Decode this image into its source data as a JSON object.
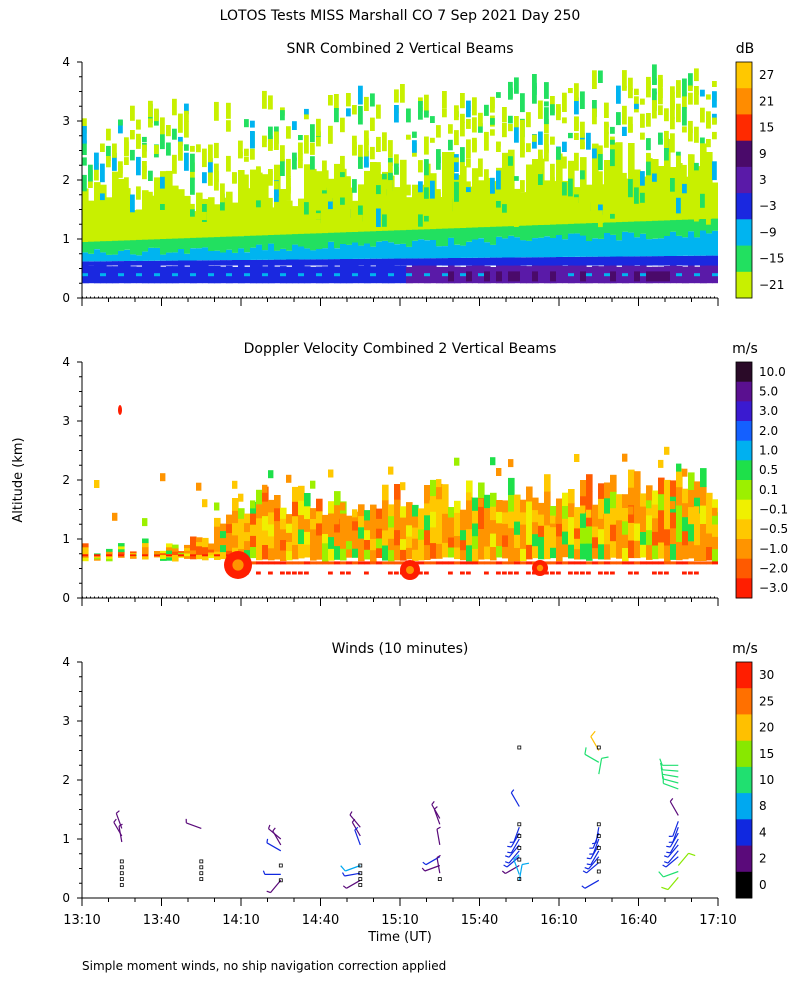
{
  "figure": {
    "title": "LOTOS Tests MISS Marshall CO   7 Sep 2021 Day 250",
    "ylabel": "Altitude (km)",
    "xlabel": "Time (UT)",
    "footnote": "Simple moment winds, no ship navigation correction applied",
    "x_ticks": [
      "13:10",
      "13:40",
      "14:10",
      "14:40",
      "15:10",
      "15:40",
      "16:10",
      "16:40",
      "17:10"
    ],
    "y_ticks": [
      "0",
      "1",
      "2",
      "3",
      "4"
    ]
  },
  "chart_data": [
    {
      "type": "heatmap",
      "title": "SNR Combined 2 Vertical Beams",
      "unit": "dB",
      "x_range_hours": [
        13.1667,
        17.1667
      ],
      "ylim": [
        0,
        4
      ],
      "colorbar": {
        "labels": [
          "27",
          "21",
          "15",
          "9",
          "3",
          "−3",
          "−9",
          "−15",
          "−21"
        ],
        "colors": [
          "#ffc800",
          "#ff8c00",
          "#ff2a00",
          "#4a0a6a",
          "#5a1aa8",
          "#1a28e0",
          "#00b4f0",
          "#22e060",
          "#c8f000"
        ]
      }
    },
    {
      "type": "heatmap",
      "title": "Doppler Velocity Combined 2 Vertical Beams",
      "unit": "m/s",
      "x_range_hours": [
        13.1667,
        17.1667
      ],
      "ylim": [
        0,
        4
      ],
      "colorbar": {
        "labels": [
          "10.0",
          "5.0",
          "3.0",
          "2.0",
          "1.0",
          "0.5",
          "0.1",
          "−0.1",
          "−0.5",
          "−1.0",
          "−2.0",
          "−3.0"
        ],
        "colors": [
          "#2a0a28",
          "#5a1090",
          "#3a1ad0",
          "#1460ff",
          "#00b0f0",
          "#1ee04a",
          "#9cf000",
          "#f0f000",
          "#ffc800",
          "#ff9400",
          "#ff5a00",
          "#ff1e00"
        ]
      }
    },
    {
      "type": "scatter",
      "title": "Winds (10 minutes)",
      "unit": "m/s",
      "x_range_hours": [
        13.1667,
        17.1667
      ],
      "ylim": [
        0,
        4
      ],
      "colorbar": {
        "labels": [
          "30",
          "25",
          "20",
          "15",
          "10",
          "8",
          "4",
          "2",
          "0"
        ],
        "colors": [
          "#ff1e00",
          "#ff7000",
          "#ffc000",
          "#88e800",
          "#20e070",
          "#00a8f0",
          "#1028e0",
          "#5a0a7a",
          "#000000"
        ]
      },
      "profiles": [
        {
          "time": 13.417,
          "barbs": [
            {
              "alt": 1.18,
              "speed": 3,
              "dir": 340
            },
            {
              "alt": 1.05,
              "speed": 3,
              "dir": 330
            },
            {
              "alt": 0.95,
              "speed": 2,
              "dir": 350
            }
          ],
          "calm_alts": [
            0.62,
            0.52,
            0.42,
            0.32,
            0.22
          ]
        },
        {
          "time": 13.917,
          "barbs": [
            {
              "alt": 1.18,
              "speed": 3,
              "dir": 290
            }
          ],
          "calm_alts": [
            0.62,
            0.52,
            0.42,
            0.32
          ]
        },
        {
          "time": 14.417,
          "barbs": [
            {
              "alt": 1.0,
              "speed": 3,
              "dir": 310
            },
            {
              "alt": 0.9,
              "speed": 3,
              "dir": 330
            },
            {
              "alt": 0.8,
              "speed": 4,
              "dir": 300
            },
            {
              "alt": 0.4,
              "speed": 4,
              "dir": 270
            },
            {
              "alt": 0.3,
              "speed": 2,
              "dir": 220
            }
          ],
          "calm_alts": [
            0.55,
            0.3
          ]
        },
        {
          "time": 14.917,
          "barbs": [
            {
              "alt": 1.2,
              "speed": 3,
              "dir": 320
            },
            {
              "alt": 1.05,
              "speed": 3,
              "dir": 330
            },
            {
              "alt": 0.9,
              "speed": 4,
              "dir": 340
            },
            {
              "alt": 0.55,
              "speed": 9,
              "dir": 250
            },
            {
              "alt": 0.42,
              "speed": 4,
              "dir": 260
            },
            {
              "alt": 0.3,
              "speed": 3,
              "dir": 240
            }
          ],
          "calm_alts": [
            0.55,
            0.42,
            0.32,
            0.22
          ]
        },
        {
          "time": 15.417,
          "barbs": [
            {
              "alt": 1.35,
              "speed": 3,
              "dir": 330
            },
            {
              "alt": 1.25,
              "speed": 3,
              "dir": 340
            },
            {
              "alt": 0.9,
              "speed": 3,
              "dir": 350
            },
            {
              "alt": 0.7,
              "speed": 4,
              "dir": 240
            },
            {
              "alt": 0.55,
              "speed": 3,
              "dir": 250
            },
            {
              "alt": 0.42,
              "speed": 3,
              "dir": 350
            }
          ],
          "calm_alts": [
            0.32
          ]
        },
        {
          "time": 15.917,
          "barbs": [
            {
              "alt": 1.55,
              "speed": 7,
              "dir": 330
            },
            {
              "alt": 1.2,
              "speed": 4,
              "dir": 200
            },
            {
              "alt": 1.1,
              "speed": 4,
              "dir": 210
            },
            {
              "alt": 1.0,
              "speed": 4,
              "dir": 210
            },
            {
              "alt": 0.9,
              "speed": 4,
              "dir": 220
            },
            {
              "alt": 0.8,
              "speed": 4,
              "dir": 220
            },
            {
              "alt": 0.7,
              "speed": 4,
              "dir": 230
            },
            {
              "alt": 0.55,
              "speed": 3,
              "dir": 240
            },
            {
              "alt": 0.4,
              "speed": 9,
              "dir": 340
            },
            {
              "alt": 0.3,
              "speed": 9,
              "dir": 10
            }
          ],
          "calm_alts": [
            2.55,
            1.25,
            1.05,
            0.85,
            0.65,
            0.32
          ]
        },
        {
          "time": 16.417,
          "barbs": [
            {
              "alt": 2.5,
              "speed": 20,
              "dir": 330
            },
            {
              "alt": 2.3,
              "speed": 14,
              "dir": 300
            },
            {
              "alt": 2.1,
              "speed": 14,
              "dir": 10
            },
            {
              "alt": 1.2,
              "speed": 4,
              "dir": 190
            },
            {
              "alt": 1.1,
              "speed": 4,
              "dir": 200
            },
            {
              "alt": 1.0,
              "speed": 4,
              "dir": 200
            },
            {
              "alt": 0.9,
              "speed": 4,
              "dir": 210
            },
            {
              "alt": 0.8,
              "speed": 4,
              "dir": 210
            },
            {
              "alt": 0.7,
              "speed": 4,
              "dir": 220
            },
            {
              "alt": 0.6,
              "speed": 4,
              "dir": 230
            },
            {
              "alt": 0.3,
              "speed": 4,
              "dir": 240
            }
          ],
          "calm_alts": [
            2.55,
            1.25,
            1.05,
            0.85,
            0.62,
            0.45
          ]
        },
        {
          "time": 16.917,
          "barbs": [
            {
              "alt": 2.25,
              "speed": 12,
              "dir": 270
            },
            {
              "alt": 2.15,
              "speed": 12,
              "dir": 275
            },
            {
              "alt": 2.05,
              "speed": 12,
              "dir": 280
            },
            {
              "alt": 1.95,
              "speed": 12,
              "dir": 285
            },
            {
              "alt": 1.85,
              "speed": 12,
              "dir": 290
            },
            {
              "alt": 1.4,
              "speed": 3,
              "dir": 330
            },
            {
              "alt": 1.3,
              "speed": 4,
              "dir": 200
            },
            {
              "alt": 1.2,
              "speed": 4,
              "dir": 200
            },
            {
              "alt": 1.1,
              "speed": 4,
              "dir": 210
            },
            {
              "alt": 1.0,
              "speed": 4,
              "dir": 210
            },
            {
              "alt": 0.9,
              "speed": 4,
              "dir": 220
            },
            {
              "alt": 0.8,
              "speed": 4,
              "dir": 220
            },
            {
              "alt": 0.7,
              "speed": 4,
              "dir": 230
            },
            {
              "alt": 0.55,
              "speed": 18,
              "dir": 40
            },
            {
              "alt": 0.45,
              "speed": 10,
              "dir": 250
            },
            {
              "alt": 0.35,
              "speed": 18,
              "dir": 220
            }
          ],
          "calm_alts": []
        }
      ]
    }
  ]
}
